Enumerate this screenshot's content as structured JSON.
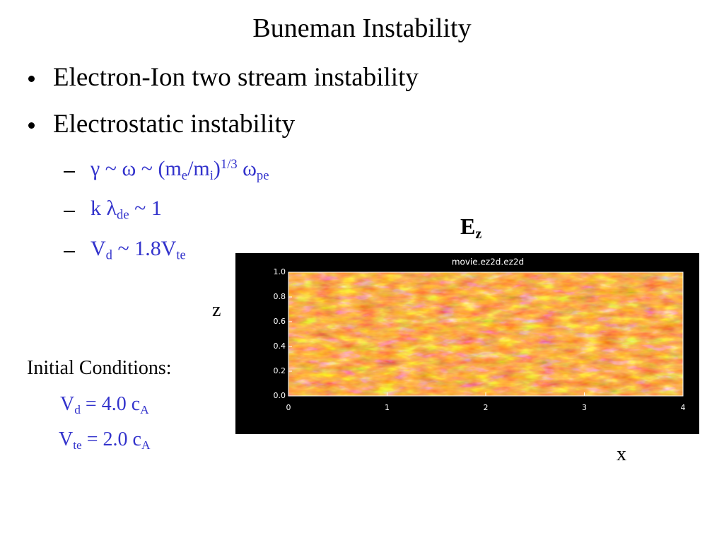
{
  "title": "Buneman Instability",
  "bullets": [
    "Electron-Ion two stream instability",
    "Electrostatic instability"
  ],
  "sub_bullets": [
    {
      "parts": [
        "γ ~ ω ~ (m",
        "e",
        "/m",
        "i",
        ")",
        "1/3",
        " ω",
        "pe"
      ]
    },
    {
      "parts": [
        "k λ",
        "de",
        " ~ 1"
      ]
    },
    {
      "parts": [
        "V",
        "d",
        " ~ 1.8V",
        "te"
      ]
    }
  ],
  "figure": {
    "label_parts": [
      "E",
      "z"
    ],
    "plot_title": "movie.ez2d.ez2d",
    "yticks": [
      "0.0",
      "0.2",
      "0.4",
      "0.6",
      "0.8",
      "1.0"
    ],
    "xticks": [
      "0",
      "1",
      "2",
      "3",
      "4"
    ],
    "z_label": "z",
    "x_label": "x"
  },
  "initial_conditions": {
    "heading": "Initial Conditions:",
    "lines": [
      {
        "parts": [
          "V",
          "d",
          " = 4.0 c",
          "A"
        ]
      },
      {
        "parts": [
          "V",
          "te",
          " = 2.0 c",
          "A"
        ]
      }
    ]
  }
}
